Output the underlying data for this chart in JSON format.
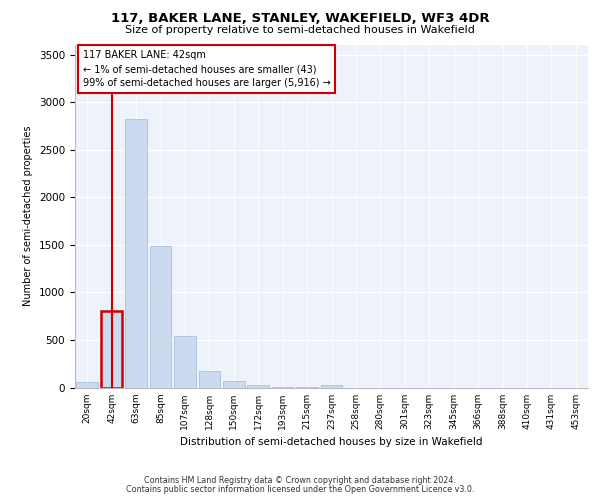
{
  "title_line1": "117, BAKER LANE, STANLEY, WAKEFIELD, WF3 4DR",
  "title_line2": "Size of property relative to semi-detached houses in Wakefield",
  "xlabel": "Distribution of semi-detached houses by size in Wakefield",
  "ylabel": "Number of semi-detached properties",
  "footer_line1": "Contains HM Land Registry data © Crown copyright and database right 2024.",
  "footer_line2": "Contains public sector information licensed under the Open Government Licence v3.0.",
  "annotation_line1": "117 BAKER LANE: 42sqm",
  "annotation_line2": "← 1% of semi-detached houses are smaller (43)",
  "annotation_line3": "99% of semi-detached houses are larger (5,916) →",
  "categories": [
    "20sqm",
    "42sqm",
    "63sqm",
    "85sqm",
    "107sqm",
    "128sqm",
    "150sqm",
    "172sqm",
    "193sqm",
    "215sqm",
    "237sqm",
    "258sqm",
    "280sqm",
    "301sqm",
    "323sqm",
    "345sqm",
    "366sqm",
    "388sqm",
    "410sqm",
    "431sqm",
    "453sqm"
  ],
  "values": [
    55,
    800,
    2820,
    1490,
    545,
    170,
    70,
    28,
    10,
    4,
    28,
    0,
    0,
    0,
    0,
    0,
    0,
    0,
    0,
    0,
    0
  ],
  "highlight_index": 1,
  "bar_color": "#ccdaf0",
  "bar_edge_color": "#9bbcd8",
  "highlight_edge_color": "#cc0000",
  "vline_color": "#cc0000",
  "annotation_box_edge": "#cc0000",
  "bg_color": "#eef2fa",
  "ylim": [
    0,
    3600
  ],
  "yticks": [
    0,
    500,
    1000,
    1500,
    2000,
    2500,
    3000,
    3500
  ]
}
